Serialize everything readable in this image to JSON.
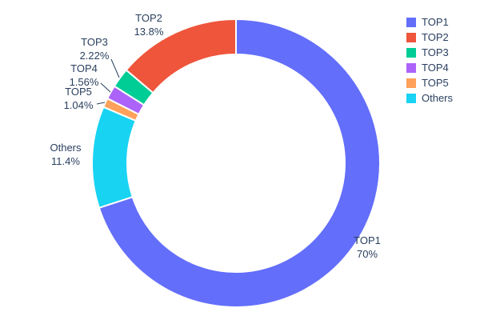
{
  "chart_data": {
    "type": "pie",
    "subtype": "donut",
    "hole_ratio": 0.755,
    "title": "",
    "labels": [
      "TOP1",
      "TOP2",
      "TOP3",
      "TOP4",
      "TOP5",
      "Others"
    ],
    "values": [
      70,
      13.8,
      2.22,
      1.56,
      1.04,
      11.4
    ],
    "percent_labels": [
      "70%",
      "13.8%",
      "2.22%",
      "1.56%",
      "1.04%",
      "11.4%"
    ],
    "colors": [
      "#636EFA",
      "#EF553B",
      "#00CC96",
      "#AB63FA",
      "#FFA15A",
      "#19D3F3"
    ],
    "slice_order_clockwise_from_top": [
      "TOP1",
      "Others",
      "TOP5",
      "TOP4",
      "TOP3",
      "TOP2"
    ],
    "legend": {
      "position": "top-right",
      "entries": [
        "TOP1",
        "TOP2",
        "TOP3",
        "TOP4",
        "TOP5",
        "Others"
      ]
    },
    "text_color": "#2a3f5f",
    "background_color": "#ffffff"
  }
}
